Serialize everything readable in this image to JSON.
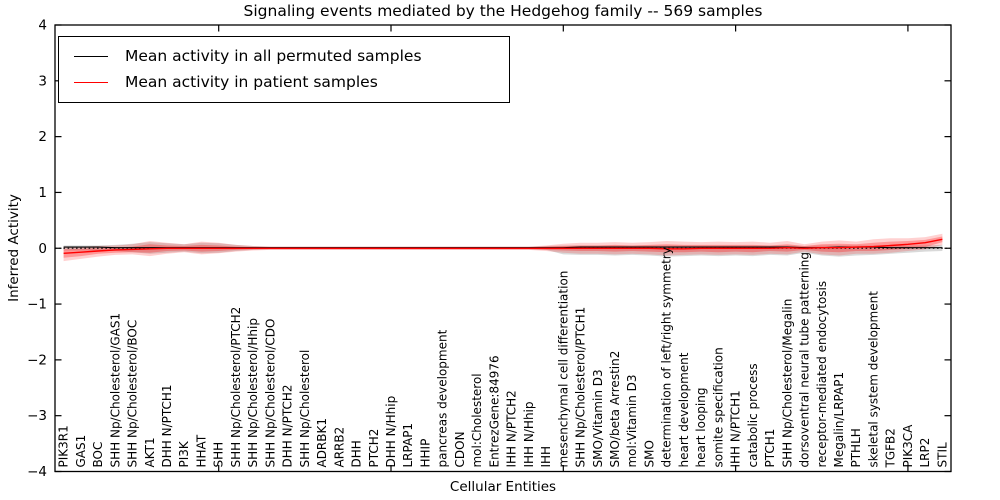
{
  "title": "Signaling events mediated by the Hedgehog family -- 569 samples",
  "colors": {
    "permuted_line": "#000000",
    "patient_line": "#ff0000",
    "permuted_band": "#aaaaaa",
    "patient_band": "#ff0000",
    "frame": "#000000"
  },
  "chart_data": {
    "type": "line",
    "title": "Signaling events mediated by the Hedgehog family -- 569 samples",
    "xlabel": "Cellular Entities",
    "ylabel": "Inferred Activity",
    "ylim": [
      -4,
      4
    ],
    "yticks": [
      4,
      3,
      2,
      1,
      0,
      -1,
      -2,
      -3,
      -4
    ],
    "ytick_labels": [
      "4",
      "3",
      "2",
      "1",
      "0",
      "−1",
      "−2",
      "−3",
      "−4"
    ],
    "grid": false,
    "legend_position": "upper left",
    "zero_line": true,
    "categories": [
      "PIK3R1",
      "GAS1",
      "BOC",
      "SHH Np/Cholesterol/GAS1",
      "SHH Np/Cholesterol/BOC",
      "AKT1",
      "DHH N/PTCH1",
      "PI3K",
      "HHAT",
      "SHH",
      "SHH Np/Cholesterol/PTCH2",
      "SHH Np/Cholesterol/Hhip",
      "SHH Np/Cholesterol/CDO",
      "DHH N/PTCH2",
      "SHH Np/Cholesterol",
      "ADRBK1",
      "ARRB2",
      "DHH",
      "PTCH2",
      "DHH N/Hhip",
      "LRPAP1",
      "HHIP",
      "pancreas development",
      "CDON",
      "mol:Cholesterol",
      "EntrezGene:84976",
      "IHH N/PTCH2",
      "IHH N/Hhip",
      "IHH",
      "mesenchymal cell differentiation",
      "SHH Np/Cholesterol/PTCH1",
      "SMO/Vitamin D3",
      "SMO/beta Arrestin2",
      "mol:Vitamin D3",
      "SMO",
      "determination of left/right symmetry",
      "heart development",
      "heart looping",
      "somite specification",
      "IHH N/PTCH1",
      "catabolic process",
      "PTCH1",
      "SHH Np/Cholesterol/Megalin",
      "dorsoventral neural tube patterning",
      "receptor-mediated endocytosis",
      "Megalin/LRPAP1",
      "PTHLH",
      "skeletal system development",
      "TGFB2",
      "PIK3CA",
      "LRP2",
      "STIL"
    ],
    "series": [
      {
        "name": "Mean activity in all permuted samples",
        "color": "#000000",
        "values": [
          0.02,
          0.02,
          0.02,
          0.01,
          0.01,
          0.01,
          0.01,
          0.01,
          0.01,
          0.01,
          0.01,
          0.01,
          0.01,
          0.01,
          0.01,
          0.01,
          0.01,
          0.01,
          0.01,
          0.01,
          0.01,
          0.01,
          0.01,
          0.01,
          0.01,
          0.01,
          0.01,
          0.01,
          0.01,
          0.01,
          0.02,
          0.02,
          0.02,
          0.02,
          0.02,
          0.02,
          0.02,
          0.02,
          0.02,
          0.02,
          0.02,
          0.02,
          0.02,
          0.01,
          0.01,
          0.02,
          0.02,
          0.02,
          0.01,
          0.01,
          0.01,
          0.01
        ]
      },
      {
        "name": "Mean activity in patient samples",
        "color": "#ff0000",
        "values": [
          -0.09,
          -0.07,
          -0.05,
          -0.03,
          -0.02,
          -0.01,
          0.0,
          0.0,
          0.0,
          0.0,
          0.0,
          0.0,
          0.0,
          0.0,
          0.0,
          0.0,
          0.0,
          0.0,
          0.0,
          0.0,
          0.0,
          0.0,
          0.0,
          0.0,
          0.0,
          0.0,
          0.0,
          0.0,
          0.0,
          0.0,
          0.0,
          0.0,
          0.0,
          0.0,
          0.0,
          -0.01,
          -0.01,
          0.0,
          0.0,
          0.0,
          0.0,
          0.0,
          0.01,
          0.0,
          0.01,
          0.01,
          0.02,
          0.03,
          0.05,
          0.07,
          0.1,
          0.16
        ]
      }
    ],
    "bands": [
      {
        "name": "permuted-range",
        "color": "#aaaaaa",
        "opacity": 0.45,
        "upper": [
          0.05,
          0.05,
          0.05,
          0.06,
          0.08,
          0.11,
          0.09,
          0.07,
          0.1,
          0.09,
          0.06,
          0.04,
          0.03,
          0.03,
          0.03,
          0.03,
          0.03,
          0.03,
          0.03,
          0.03,
          0.03,
          0.03,
          0.03,
          0.03,
          0.03,
          0.03,
          0.03,
          0.03,
          0.04,
          0.05,
          0.05,
          0.05,
          0.05,
          0.05,
          0.05,
          0.05,
          0.05,
          0.05,
          0.05,
          0.05,
          0.05,
          0.05,
          0.05,
          0.04,
          0.05,
          0.05,
          0.05,
          0.05,
          0.05,
          0.05,
          0.05,
          0.06
        ],
        "lower": [
          -0.04,
          -0.04,
          -0.04,
          -0.05,
          -0.07,
          -0.1,
          -0.08,
          -0.06,
          -0.09,
          -0.08,
          -0.05,
          -0.03,
          -0.02,
          -0.02,
          -0.02,
          -0.02,
          -0.02,
          -0.02,
          -0.02,
          -0.02,
          -0.02,
          -0.02,
          -0.02,
          -0.02,
          -0.02,
          -0.02,
          -0.02,
          -0.02,
          -0.03,
          -0.11,
          -0.12,
          -0.12,
          -0.13,
          -0.12,
          -0.13,
          -0.15,
          -0.14,
          -0.13,
          -0.14,
          -0.13,
          -0.14,
          -0.12,
          -0.13,
          -0.08,
          -0.13,
          -0.15,
          -0.13,
          -0.12,
          -0.1,
          -0.08,
          -0.06,
          -0.05
        ]
      },
      {
        "name": "patient-range-outer",
        "color": "#ff0000",
        "opacity": 0.18,
        "upper": [
          0.03,
          0.03,
          0.04,
          0.05,
          0.07,
          0.13,
          0.1,
          0.07,
          0.12,
          0.1,
          0.06,
          0.04,
          0.03,
          0.03,
          0.03,
          0.03,
          0.03,
          0.03,
          0.03,
          0.03,
          0.03,
          0.03,
          0.03,
          0.03,
          0.03,
          0.03,
          0.03,
          0.03,
          0.05,
          0.08,
          0.1,
          0.1,
          0.11,
          0.1,
          0.11,
          0.13,
          0.12,
          0.11,
          0.12,
          0.11,
          0.12,
          0.1,
          0.13,
          0.07,
          0.12,
          0.14,
          0.12,
          0.16,
          0.18,
          0.18,
          0.2,
          0.26
        ],
        "lower": [
          -0.23,
          -0.19,
          -0.15,
          -0.12,
          -0.11,
          -0.14,
          -0.1,
          -0.07,
          -0.11,
          -0.09,
          -0.06,
          -0.04,
          -0.03,
          -0.03,
          -0.03,
          -0.03,
          -0.03,
          -0.03,
          -0.03,
          -0.03,
          -0.03,
          -0.03,
          -0.03,
          -0.03,
          -0.03,
          -0.03,
          -0.03,
          -0.03,
          -0.05,
          -0.08,
          -0.1,
          -0.1,
          -0.11,
          -0.1,
          -0.11,
          -0.13,
          -0.12,
          -0.11,
          -0.12,
          -0.11,
          -0.12,
          -0.1,
          -0.11,
          -0.06,
          -0.11,
          -0.13,
          -0.1,
          -0.1,
          -0.08,
          -0.05,
          -0.02,
          0.06
        ]
      },
      {
        "name": "patient-range-inner",
        "color": "#ff0000",
        "opacity": 0.28,
        "upper": [
          -0.02,
          -0.01,
          0.0,
          0.01,
          0.03,
          0.07,
          0.05,
          0.04,
          0.06,
          0.05,
          0.03,
          0.02,
          0.02,
          0.02,
          0.02,
          0.02,
          0.02,
          0.02,
          0.02,
          0.02,
          0.02,
          0.02,
          0.02,
          0.02,
          0.02,
          0.02,
          0.02,
          0.02,
          0.03,
          0.04,
          0.05,
          0.05,
          0.06,
          0.05,
          0.06,
          0.07,
          0.06,
          0.06,
          0.06,
          0.06,
          0.06,
          0.05,
          0.07,
          0.04,
          0.07,
          0.08,
          0.07,
          0.1,
          0.12,
          0.13,
          0.15,
          0.21
        ],
        "lower": [
          -0.17,
          -0.14,
          -0.1,
          -0.08,
          -0.07,
          -0.08,
          -0.05,
          -0.04,
          -0.06,
          -0.05,
          -0.03,
          -0.02,
          -0.02,
          -0.02,
          -0.02,
          -0.02,
          -0.02,
          -0.02,
          -0.02,
          -0.02,
          -0.02,
          -0.02,
          -0.02,
          -0.02,
          -0.02,
          -0.02,
          -0.02,
          -0.02,
          -0.03,
          -0.04,
          -0.05,
          -0.05,
          -0.06,
          -0.05,
          -0.06,
          -0.07,
          -0.07,
          -0.06,
          -0.07,
          -0.06,
          -0.07,
          -0.05,
          -0.06,
          -0.03,
          -0.06,
          -0.07,
          -0.05,
          -0.05,
          -0.03,
          -0.01,
          0.02,
          0.11
        ]
      }
    ]
  }
}
